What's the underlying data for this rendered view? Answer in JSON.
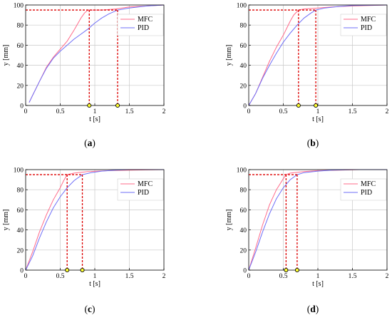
{
  "colors": {
    "mfc": "#ff6b8a",
    "pid": "#6f6ff7",
    "guide": "#dd0000",
    "marker_fill": "#ffff33",
    "grid": "#c8c8c8"
  },
  "chart_data": [
    {
      "type": "line",
      "caption": "(a)",
      "xlabel": "t [s]",
      "ylabel": "y [mm]",
      "xlim": [
        0,
        2
      ],
      "ylim": [
        0,
        100
      ],
      "xticks": [
        "0",
        "0.5",
        "1",
        "1.5",
        "2"
      ],
      "yticks": [
        "0",
        "20",
        "40",
        "60",
        "80",
        "100"
      ],
      "grid": true,
      "legend_position": "top-right",
      "threshold": 95,
      "markers": [
        0.92,
        1.33
      ],
      "series": [
        {
          "name": "MFC",
          "color": "#ff6b8a",
          "x": [
            0.05,
            0.1,
            0.2,
            0.3,
            0.4,
            0.5,
            0.6,
            0.7,
            0.75,
            0.8,
            0.85,
            0.9,
            0.92,
            1.0,
            1.1,
            1.3,
            1.5,
            2.0
          ],
          "y": [
            3,
            10,
            24,
            38,
            48,
            56,
            64,
            75,
            81,
            87,
            92,
            95,
            95,
            95,
            95,
            96,
            98,
            100
          ]
        },
        {
          "name": "PID",
          "color": "#6f6ff7",
          "x": [
            0.05,
            0.1,
            0.2,
            0.3,
            0.4,
            0.5,
            0.6,
            0.7,
            0.8,
            0.9,
            1.0,
            1.1,
            1.2,
            1.33,
            1.5,
            1.75,
            2.0
          ],
          "y": [
            3,
            10,
            24,
            37,
            47,
            54,
            60,
            66,
            71,
            76,
            82,
            87,
            91,
            95,
            97,
            99,
            100
          ]
        }
      ]
    },
    {
      "type": "line",
      "caption": "(b)",
      "xlabel": "t [s]",
      "ylabel": "y [mm]",
      "xlim": [
        0,
        2
      ],
      "ylim": [
        0,
        100
      ],
      "xticks": [
        "0",
        "0.5",
        "1",
        "1.5",
        "2"
      ],
      "yticks": [
        "0",
        "20",
        "40",
        "60",
        "80",
        "100"
      ],
      "grid": true,
      "legend_position": "top-right",
      "threshold": 95,
      "markers": [
        0.72,
        0.97
      ],
      "series": [
        {
          "name": "MFC",
          "color": "#ff6b8a",
          "x": [
            0.0,
            0.1,
            0.2,
            0.3,
            0.4,
            0.5,
            0.55,
            0.6,
            0.65,
            0.72,
            0.8,
            1.0,
            1.2,
            1.5,
            2.0
          ],
          "y": [
            0,
            12,
            28,
            44,
            58,
            70,
            77,
            84,
            90,
            95,
            96,
            97,
            98,
            99,
            100
          ]
        },
        {
          "name": "PID",
          "color": "#6f6ff7",
          "x": [
            0.0,
            0.1,
            0.2,
            0.3,
            0.4,
            0.5,
            0.6,
            0.7,
            0.8,
            0.9,
            0.97,
            1.1,
            1.3,
            1.5,
            2.0
          ],
          "y": [
            0,
            12,
            27,
            40,
            52,
            63,
            72,
            80,
            87,
            92,
            95,
            97,
            98.5,
            99.5,
            100
          ]
        }
      ]
    },
    {
      "type": "line",
      "caption": "(c)",
      "xlabel": "t [s]",
      "ylabel": "y [mm]",
      "xlim": [
        0,
        2
      ],
      "ylim": [
        0,
        100
      ],
      "xticks": [
        "0",
        "0.5",
        "1",
        "1.5",
        "2"
      ],
      "yticks": [
        "0",
        "20",
        "40",
        "60",
        "80",
        "100"
      ],
      "grid": true,
      "legend_position": "top-right",
      "threshold": 95,
      "markers": [
        0.6,
        0.82
      ],
      "series": [
        {
          "name": "MFC",
          "color": "#ff6b8a",
          "x": [
            0.0,
            0.1,
            0.2,
            0.3,
            0.4,
            0.5,
            0.55,
            0.6,
            0.7,
            0.9,
            1.2,
            1.5,
            2.0
          ],
          "y": [
            0,
            18,
            38,
            55,
            70,
            82,
            89,
            95,
            96.5,
            98,
            99,
            99.5,
            100
          ]
        },
        {
          "name": "PID",
          "color": "#6f6ff7",
          "x": [
            0.0,
            0.1,
            0.2,
            0.3,
            0.4,
            0.5,
            0.6,
            0.7,
            0.82,
            0.95,
            1.1,
            1.3,
            1.5,
            2.0
          ],
          "y": [
            0,
            14,
            32,
            48,
            62,
            73,
            82,
            89,
            95,
            97,
            98.5,
            99.5,
            100,
            100
          ]
        }
      ]
    },
    {
      "type": "line",
      "caption": "(d)",
      "xlabel": "t [s]",
      "ylabel": "y [mm]",
      "xlim": [
        0,
        2
      ],
      "ylim": [
        0,
        100
      ],
      "xticks": [
        "0",
        "0.5",
        "1",
        "1.5",
        "2"
      ],
      "yticks": [
        "0",
        "20",
        "40",
        "60",
        "80",
        "100"
      ],
      "grid": true,
      "legend_position": "top-right",
      "threshold": 95,
      "markers": [
        0.54,
        0.7
      ],
      "series": [
        {
          "name": "MFC",
          "color": "#ff6b8a",
          "x": [
            0.0,
            0.1,
            0.2,
            0.3,
            0.4,
            0.5,
            0.54,
            0.6,
            0.8,
            1.0,
            1.3,
            1.6,
            2.0
          ],
          "y": [
            0,
            22,
            45,
            65,
            80,
            91,
            95,
            96.5,
            98,
            99,
            99.5,
            100,
            100
          ]
        },
        {
          "name": "PID",
          "color": "#6f6ff7",
          "x": [
            0.0,
            0.1,
            0.2,
            0.3,
            0.4,
            0.5,
            0.6,
            0.7,
            0.8,
            1.0,
            1.2,
            1.5,
            2.0
          ],
          "y": [
            0,
            18,
            38,
            56,
            71,
            82,
            90,
            95,
            97,
            98.5,
            99.5,
            100,
            100
          ]
        }
      ]
    }
  ]
}
